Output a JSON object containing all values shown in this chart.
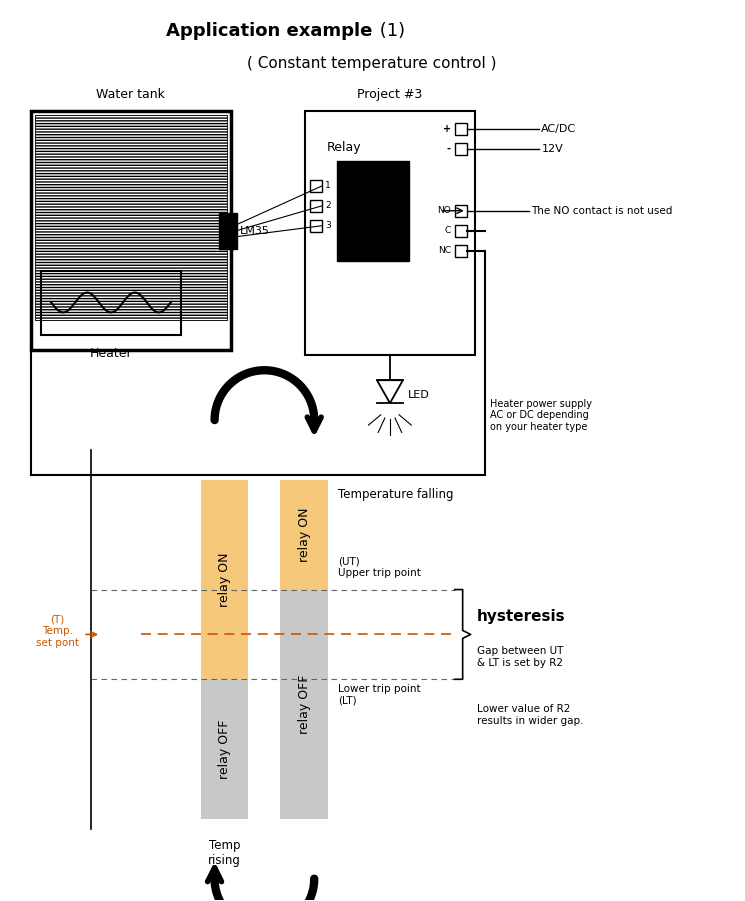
{
  "title_bold": "Application example",
  "title_normal": " (1)",
  "subtitle": "( Constant temperature control )",
  "bg_color": "#ffffff",
  "tank_label": "Water tank",
  "project_label": "Project #3",
  "relay_label": "Relay",
  "led_label": "LED",
  "lm35_label": "LM35",
  "heater_label": "Heater",
  "acdc_label": "AC/DC",
  "v12_label": "12V",
  "no_contact_label": "The NO contact is not used",
  "heater_supply_label": "Heater power supply\nAC or DC depending\non your heater type",
  "temp_falling_label": "Temperature falling",
  "ut_label": "(UT)\nUpper trip point",
  "lt_label": "Lower trip point\n(LT)",
  "hysteresis_label": "hysteresis",
  "gap_label": "Gap between UT\n& LT is set by R2",
  "lower_r2_label": "Lower value of R2\nresults in wider gap.",
  "temp_set_label": "(T)\nTemp.\nset pont",
  "temp_rising_label": "Temp\nrising",
  "relay_on_color": "#f5c87a",
  "relay_off_color": "#c8c8c8",
  "arrow_color": "#1a1a1a",
  "dashed_line_color": "#666666",
  "temp_set_color": "#cc5500",
  "hysteresis_brace_color": "#333333"
}
